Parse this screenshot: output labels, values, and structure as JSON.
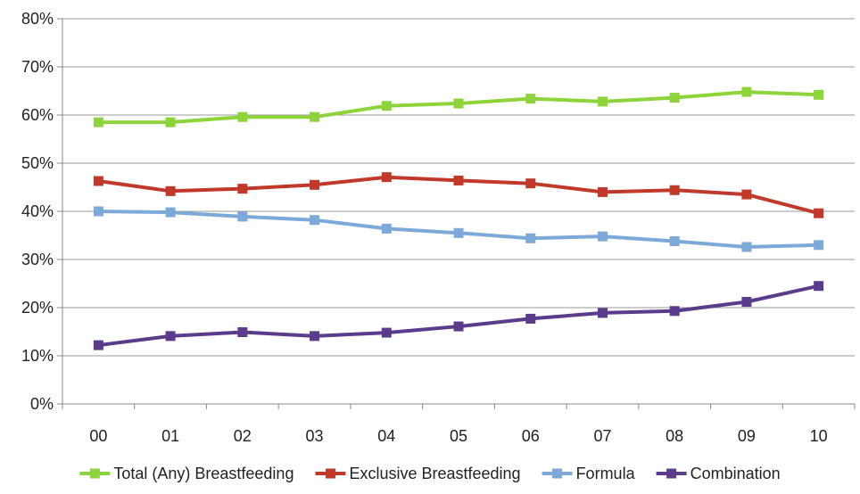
{
  "chart_data": {
    "type": "line",
    "title": "",
    "xlabel": "",
    "ylabel": "",
    "x": [
      "00",
      "01",
      "02",
      "03",
      "04",
      "05",
      "06",
      "07",
      "08",
      "09",
      "10"
    ],
    "ylim": [
      0,
      80
    ],
    "yticks": [
      "0%",
      "10%",
      "20%",
      "30%",
      "40%",
      "50%",
      "60%",
      "70%",
      "80%"
    ],
    "grid": "horizontal",
    "legend_position": "bottom",
    "series": [
      {
        "name": "Total (Any) Breastfeeding",
        "color": "#8DD43A",
        "values": [
          58.5,
          58.5,
          59.6,
          59.6,
          61.9,
          62.4,
          63.4,
          62.8,
          63.6,
          64.8,
          64.2
        ]
      },
      {
        "name": "Exclusive Breastfeeding",
        "color": "#C0392B",
        "values": [
          46.3,
          44.2,
          44.7,
          45.5,
          47.1,
          46.4,
          45.8,
          44.0,
          44.4,
          43.5,
          39.6
        ]
      },
      {
        "name": "Formula",
        "color": "#7DA9DA",
        "values": [
          40.0,
          39.8,
          38.9,
          38.2,
          36.4,
          35.5,
          34.4,
          34.8,
          33.8,
          32.6,
          33.0
        ]
      },
      {
        "name": "Combination",
        "color": "#5B3C8C",
        "values": [
          12.2,
          14.1,
          14.9,
          14.1,
          14.8,
          16.1,
          17.7,
          18.9,
          19.3,
          21.2,
          24.5
        ]
      }
    ]
  }
}
